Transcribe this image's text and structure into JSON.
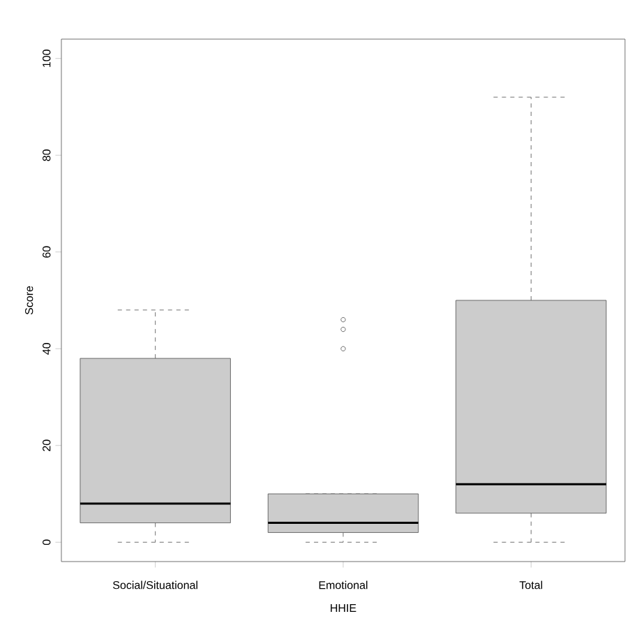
{
  "chart_data": {
    "type": "box",
    "xlabel": "HHIE",
    "ylabel": "Score",
    "categories": [
      "Social/Situational",
      "Emotional",
      "Total"
    ],
    "color": "#cccccc",
    "boxes": [
      {
        "low": 0,
        "q1": 4,
        "median": 8,
        "q3": 38,
        "high": 48
      },
      {
        "low": 0,
        "q1": 2,
        "median": 4,
        "q3": 10,
        "high": 10,
        "outliers": [
          40,
          44,
          46
        ]
      },
      {
        "low": 0,
        "q1": 6,
        "median": 12,
        "q3": 50,
        "high": 92
      }
    ],
    "ylim": [
      -4,
      104
    ],
    "yticks": [
      0,
      20,
      40,
      60,
      80,
      100
    ]
  }
}
